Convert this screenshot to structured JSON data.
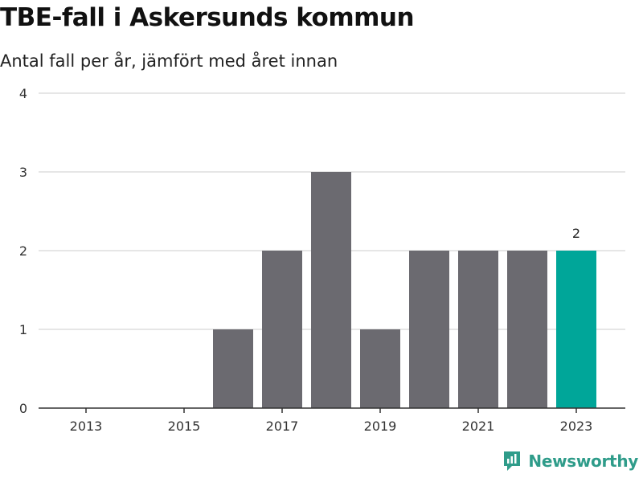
{
  "title": "TBE-fall i Askersunds kommun",
  "subtitle": "Antal fall per år, jämfört med året innan",
  "brand": "Newsworthy",
  "colors": {
    "bar": "#6b6a70",
    "highlight": "#00a699",
    "grid": "#dddddd",
    "axis": "#333333",
    "brand": "#2f9c8a"
  },
  "chart_data": {
    "type": "bar",
    "x": [
      2013,
      2014,
      2015,
      2016,
      2017,
      2018,
      2019,
      2020,
      2021,
      2022,
      2023
    ],
    "values": [
      0,
      0,
      0,
      1,
      2,
      3,
      1,
      2,
      2,
      2,
      2
    ],
    "x_tick_labels": [
      "2013",
      "2015",
      "2017",
      "2019",
      "2021",
      "2023"
    ],
    "y_ticks": [
      0,
      1,
      2,
      3,
      4
    ],
    "ylim": [
      0,
      4
    ],
    "highlight": 2023,
    "data_labels": [
      {
        "x": 2023,
        "text": "2"
      }
    ],
    "grid": true
  }
}
